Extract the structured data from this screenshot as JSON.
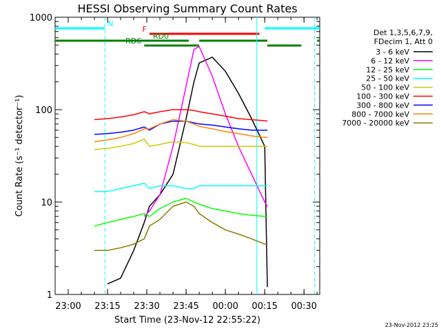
{
  "chart_data": {
    "type": "line",
    "title": "HESSI Observing Summary Count Rates",
    "xlabel": "Start Time (23-Nov-12 22:55:22)",
    "ylabel": "Count Rate (s⁻¹ detector⁻¹)",
    "yscale": "log",
    "ylim": [
      1,
      1000
    ],
    "xlim": [
      "22:55",
      "00:36"
    ],
    "x_ticks": [
      "23:00",
      "23:15",
      "23:30",
      "23:45",
      "00:00",
      "00:15",
      "00:30"
    ],
    "y_ticks": [
      "1",
      "10",
      "100",
      "1000"
    ],
    "grid": false,
    "legend_position": "right",
    "legend_header": [
      "Det 1,3,5,6,7,9,",
      "FDecim 1, Att 0"
    ],
    "x": [
      "23:10",
      "23:15",
      "23:20",
      "23:25",
      "23:29",
      "23:31",
      "23:35",
      "23:40",
      "23:45",
      "23:48",
      "23:50",
      "23:55",
      "00:00",
      "00:05",
      "00:10",
      "00:15",
      "00:16"
    ],
    "series": [
      {
        "name": "3 - 6 keV",
        "color": "#000000",
        "values": [
          null,
          1.3,
          1.5,
          3.0,
          6.0,
          9.0,
          12,
          20,
          80,
          200,
          320,
          370,
          260,
          150,
          80,
          40,
          1.2
        ]
      },
      {
        "name": "6 - 12 keV",
        "color": "#ff00ff",
        "values": [
          null,
          null,
          null,
          null,
          7.0,
          8.0,
          12,
          40,
          180,
          450,
          480,
          230,
          90,
          40,
          20,
          10,
          9
        ]
      },
      {
        "name": "12 - 25 keV",
        "color": "#00ff00",
        "values": [
          5.5,
          6.0,
          6.5,
          7.0,
          7.5,
          7.0,
          8.5,
          10,
          11,
          10,
          9.5,
          8.5,
          8.0,
          7.5,
          7.2,
          7.0,
          7.0
        ]
      },
      {
        "name": "25 - 50 keV",
        "color": "#00ffff",
        "values": [
          13,
          13,
          14,
          15,
          16,
          14,
          15,
          15,
          14,
          14,
          15,
          15,
          15,
          15,
          15,
          15,
          15
        ]
      },
      {
        "name": "50 - 100 keV",
        "color": "#cccc00",
        "values": [
          37,
          38,
          40,
          43,
          48,
          40,
          42,
          45,
          44,
          42,
          40,
          40,
          40,
          40,
          40,
          40,
          40
        ]
      },
      {
        "name": "100 - 300 keV",
        "color": "#ff0000",
        "values": [
          78,
          80,
          83,
          88,
          95,
          90,
          95,
          100,
          100,
          98,
          95,
          90,
          85,
          80,
          78,
          76,
          75
        ]
      },
      {
        "name": "300 - 800 keV",
        "color": "#0000ff",
        "values": [
          54,
          55,
          57,
          60,
          65,
          60,
          70,
          75,
          75,
          72,
          70,
          68,
          65,
          62,
          60,
          60,
          60
        ]
      },
      {
        "name": "800 - 7000 keV",
        "color": "#ff8000",
        "values": [
          45,
          47,
          50,
          55,
          62,
          62,
          70,
          78,
          75,
          70,
          66,
          62,
          58,
          55,
          52,
          50,
          50
        ]
      },
      {
        "name": "7000 - 20000 keV",
        "color": "#808000",
        "values": [
          3.0,
          3.0,
          3.2,
          3.5,
          4.0,
          5.5,
          6.5,
          9.0,
          10,
          9.0,
          7.5,
          6.0,
          5.0,
          4.5,
          4.0,
          3.5,
          3.5
        ]
      }
    ],
    "flags": [
      {
        "label": "N",
        "color": "#00ffff",
        "bars": [
          [
            "22:55",
            "23:14"
          ],
          [
            "00:15",
            "00:36"
          ]
        ]
      },
      {
        "label": "F",
        "color": "#ff0000",
        "bars": [
          [
            "23:31",
            "00:13"
          ]
        ]
      },
      {
        "label": "RD0",
        "color": "#008000",
        "bars": [
          [
            "22:55",
            "23:46"
          ],
          [
            "23:50",
            "00:16"
          ],
          [
            "00:35",
            "00:36"
          ]
        ]
      },
      {
        "label": "RD6",
        "color": "#008000",
        "bars": [
          [
            "23:29",
            "23:50"
          ],
          [
            "00:16",
            "00:29"
          ]
        ]
      }
    ],
    "vertical_markers": [
      {
        "x": "23:14",
        "color": "#00ffff",
        "style": "dashed"
      },
      {
        "x": "00:12",
        "color": "#00ffff",
        "style": "solid"
      },
      {
        "x": "00:34",
        "color": "#00ffff",
        "style": "dashed"
      }
    ]
  },
  "timestamp": "23-Nov-2012 23:25"
}
